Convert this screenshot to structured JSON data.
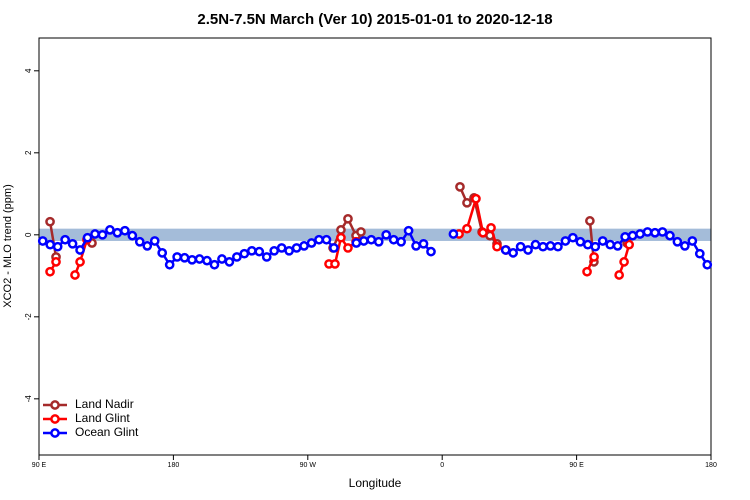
{
  "chart_data": {
    "type": "line",
    "title": "2.5N-7.5N March (Ver 10)   2015-01-01 to 2020-12-18",
    "x_label": "Longitude",
    "y_label": "XCO2 - MLO trend (ppm)",
    "xlim": [
      90,
      540
    ],
    "ylim": [
      -5.37,
      4.8
    ],
    "xticks": [
      {
        "value": 90,
        "label": "90 E"
      },
      180,
      {
        "value": 270,
        "label": "90 W"
      },
      {
        "value": 360,
        "label": "0"
      },
      {
        "value": 450,
        "label": "90 E"
      },
      {
        "value": 540,
        "label": "180"
      }
    ],
    "yticks": [
      -4,
      -2,
      0,
      2,
      4
    ],
    "reference_band": [
      -0.15,
      0.15
    ],
    "band_color": "#a4bcd9",
    "legend": "bottom-left",
    "series": [
      {
        "name": "Land Nadir",
        "color": "#a52a2a",
        "x": [
          97.4,
          101.4,
          110,
          125.5,
          200,
          286.9,
          292.2,
          296.9,
          302.3,
          305.6,
          340,
          371.9,
          376.6,
          381.3,
          386.7,
          392,
          396.7,
          420,
          458.9,
          461.6,
          470,
          483.8
        ],
        "values": [
          0.32,
          -0.54,
          null,
          -0.2,
          null,
          -0.32,
          0.12,
          0.39,
          -0.02,
          0.07,
          null,
          1.17,
          0.78,
          0.9,
          0.07,
          -0.02,
          -0.22,
          null,
          0.34,
          -0.66,
          null,
          -0.2
        ]
      },
      {
        "name": "Land Glint",
        "color": "#ff0000",
        "x": [
          97.4,
          101.4,
          108,
          114.1,
          117.5,
          122.1,
          200,
          284.2,
          288.2,
          292.2,
          296.9,
          302.3,
          340,
          371.3,
          376.6,
          382.6,
          387.3,
          392.7,
          396.7,
          402.7,
          430,
          457,
          461.7,
          470,
          478.5,
          481.8,
          485.2
        ],
        "values": [
          -0.9,
          -0.66,
          null,
          -0.98,
          -0.66,
          -0.12,
          null,
          -0.71,
          -0.71,
          -0.07,
          -0.32,
          -0.17,
          null,
          0.02,
          0.15,
          0.88,
          0.05,
          0.17,
          -0.29,
          -0.37,
          null,
          -0.9,
          -0.54,
          null,
          -0.98,
          -0.66,
          -0.24
        ]
      },
      {
        "name": "Ocean Glint",
        "color": "#0000ff",
        "x": [
          92.5,
          97.5,
          102.5,
          107.5,
          112.5,
          117.5,
          122.5,
          127.5,
          132.5,
          137.5,
          142.5,
          147.5,
          152.5,
          157.5,
          162.5,
          167.5,
          172.5,
          177.5,
          182.5,
          187.5,
          192.5,
          197.5,
          202.5,
          207.5,
          212.5,
          217.5,
          222.5,
          227.5,
          232.5,
          237.5,
          242.5,
          247.5,
          252.5,
          257.5,
          262.5,
          267.5,
          272.5,
          277.5,
          282.5,
          287.5,
          292.5,
          297.5,
          302.5,
          307.5,
          312.5,
          317.5,
          322.5,
          327.5,
          332.5,
          337.5,
          342.5,
          347.5,
          352.5,
          357.5,
          362.5,
          367.5,
          372.5,
          377.5,
          382.5,
          387.5,
          392.5,
          397.5,
          402.5,
          407.5,
          412.5,
          417.5,
          422.5,
          427.5,
          432.5,
          437.5,
          442.5,
          447.5,
          452.5,
          457.5,
          462.5,
          467.5,
          472.5,
          477.5,
          482.5,
          487.5,
          492.5,
          497.5,
          502.5,
          507.5,
          512.5,
          517.5,
          522.5,
          527.5,
          532.5,
          537.5
        ],
        "values": [
          -0.15,
          -0.24,
          -0.29,
          -0.12,
          -0.22,
          -0.37,
          -0.07,
          0.02,
          0,
          0.12,
          0.05,
          0.1,
          -0.02,
          -0.17,
          -0.27,
          -0.15,
          -0.44,
          -0.73,
          -0.54,
          -0.56,
          -0.61,
          -0.59,
          -0.63,
          -0.73,
          -0.59,
          -0.66,
          -0.54,
          -0.46,
          -0.39,
          -0.41,
          -0.54,
          -0.39,
          -0.32,
          -0.39,
          -0.32,
          -0.27,
          -0.2,
          -0.12,
          -0.12,
          -0.32,
          null,
          null,
          -0.2,
          -0.15,
          -0.12,
          -0.17,
          0,
          -0.12,
          -0.17,
          0.1,
          -0.27,
          -0.22,
          -0.41,
          null,
          null,
          0.02,
          null,
          null,
          null,
          null,
          null,
          null,
          -0.37,
          -0.44,
          -0.29,
          -0.37,
          -0.24,
          -0.29,
          -0.27,
          -0.29,
          -0.15,
          -0.07,
          -0.17,
          -0.24,
          -0.29,
          -0.15,
          -0.24,
          -0.27,
          -0.05,
          -0.02,
          0.02,
          0.07,
          0.05,
          0.07,
          -0.02,
          -0.17,
          -0.27,
          -0.15,
          -0.46,
          -0.73
        ]
      }
    ]
  }
}
